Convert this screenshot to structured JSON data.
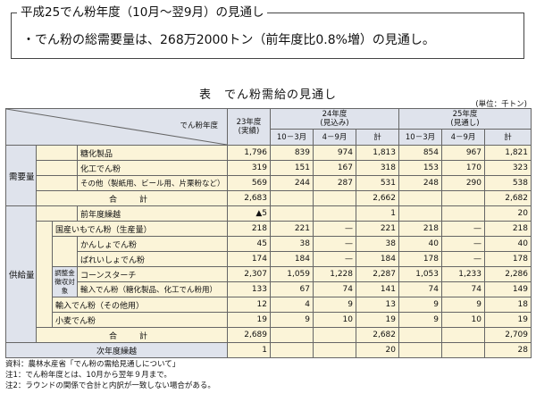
{
  "summary": {
    "title": "平成25でん粉年度（10月～翌9月）の見通し",
    "text": "・でん粉の総需要量は、268万2000トン（前年度比0.8%増）の見通し。"
  },
  "table_title": "表　でん粉需給の見通し",
  "unit": "(単位：千トン)",
  "header": {
    "corner": "でん粉年度",
    "y23": "23年度\n(実績)",
    "y24": "24年度\n(見込み)",
    "y25": "25年度\n(見通し)",
    "q1": "10－3月",
    "q2": "4－9月",
    "total": "計"
  },
  "groups": {
    "demand": "需要量",
    "supply": "供給量",
    "adjust": "調整金\n徴収対象"
  },
  "demand_rows": [
    {
      "label": "糖化製品",
      "y23": "1,796",
      "a1": "839",
      "a2": "974",
      "a3": "1,813",
      "b1": "854",
      "b2": "967",
      "b3": "1,821"
    },
    {
      "label": "化工でん粉",
      "y23": "319",
      "a1": "151",
      "a2": "167",
      "a3": "318",
      "b1": "153",
      "b2": "170",
      "b3": "323"
    },
    {
      "label": "その他（製紙用、ビール用、片栗粉など）",
      "y23": "569",
      "a1": "244",
      "a2": "287",
      "a3": "531",
      "b1": "248",
      "b2": "290",
      "b3": "538"
    }
  ],
  "demand_total": {
    "label": "合　計",
    "y23": "2,683",
    "a1": "",
    "a2": "",
    "a3": "2,662",
    "b1": "",
    "b2": "",
    "b3": "2,682"
  },
  "carry_in": {
    "label": "前年度繰越",
    "y23": "▲5",
    "a1": "",
    "a2": "",
    "a3": "1",
    "b1": "",
    "b2": "",
    "b3": "20"
  },
  "supply_rows": [
    {
      "label": "国産いもでん粉（生産量）",
      "y23": "218",
      "a1": "221",
      "a2": "—",
      "a3": "221",
      "b1": "218",
      "b2": "—",
      "b3": "218"
    },
    {
      "label": "かんしょでん粉",
      "y23": "45",
      "a1": "38",
      "a2": "—",
      "a3": "38",
      "b1": "40",
      "b2": "—",
      "b3": "40"
    },
    {
      "label": "ばれいしょでん粉",
      "y23": "174",
      "a1": "184",
      "a2": "—",
      "a3": "184",
      "b1": "178",
      "b2": "—",
      "b3": "178"
    },
    {
      "label": "コーンスターチ",
      "y23": "2,307",
      "a1": "1,059",
      "a2": "1,228",
      "a3": "2,287",
      "b1": "1,053",
      "b2": "1,233",
      "b3": "2,286"
    },
    {
      "label": "輸入でん粉（糖化製品、化工でん粉用）",
      "y23": "133",
      "a1": "67",
      "a2": "74",
      "a3": "141",
      "b1": "74",
      "b2": "74",
      "b3": "149"
    },
    {
      "label": "輸入でん粉（その他用）",
      "y23": "12",
      "a1": "4",
      "a2": "9",
      "a3": "13",
      "b1": "9",
      "b2": "9",
      "b3": "18"
    },
    {
      "label": "小麦でん粉",
      "y23": "19",
      "a1": "9",
      "a2": "10",
      "a3": "19",
      "b1": "9",
      "b2": "10",
      "b3": "19"
    }
  ],
  "supply_total": {
    "label": "合　計",
    "y23": "2,689",
    "a1": "",
    "a2": "",
    "a3": "2,682",
    "b1": "",
    "b2": "",
    "b3": "2,709"
  },
  "carry_out": {
    "label": "次年度繰越",
    "y23": "1",
    "a1": "",
    "a2": "",
    "a3": "20",
    "b1": "",
    "b2": "",
    "b3": "28"
  },
  "notes": [
    "資料：農林水産省「でん粉の需給見通しについて」",
    "注1：でん粉年度とは、10月から翌年９月まで。",
    "注2：ラウンドの関係で合計と内訳が一致しない場合がある。"
  ],
  "colors": {
    "header_bg": "#dfe3ec",
    "row_bg": "#fbf4d8",
    "border": "#666666"
  }
}
